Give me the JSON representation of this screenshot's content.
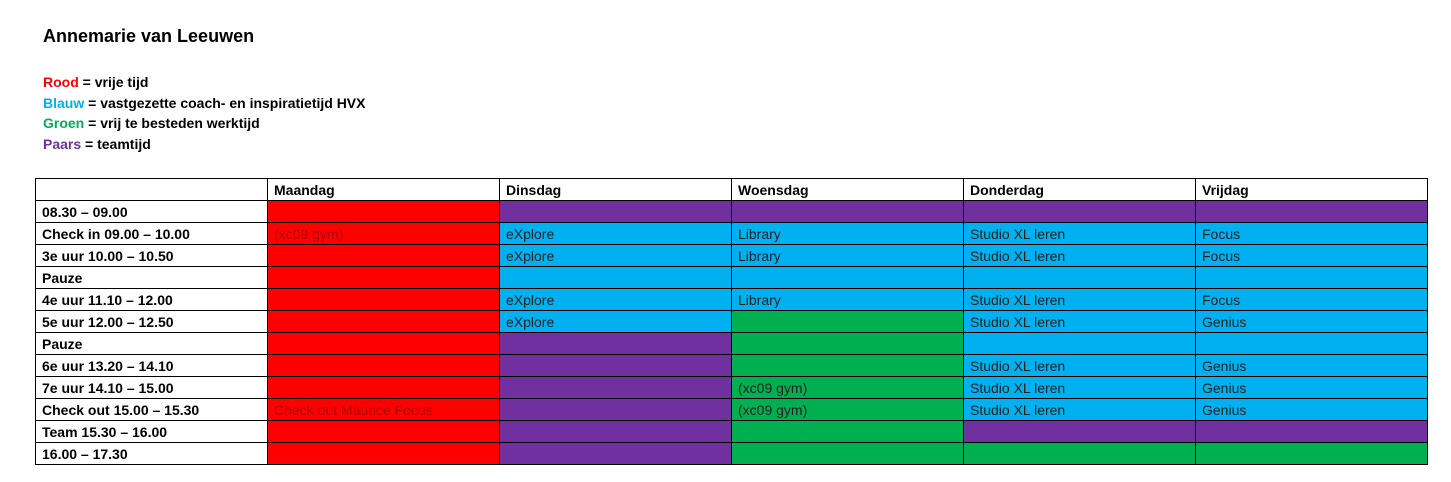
{
  "title": "Annemarie van Leeuwen",
  "colors": {
    "R": "#FF0000",
    "B": "#00B0F0",
    "G": "#00B050",
    "P": "#7030A0"
  },
  "legend": [
    {
      "key": "Rood",
      "color": "R",
      "desc": " = vrije tijd"
    },
    {
      "key": "Blauw",
      "color": "B",
      "desc": " = vastgezette coach- en inspiratietijd HVX"
    },
    {
      "key": "Groen",
      "color": "G",
      "desc": " = vrij te besteden werktijd"
    },
    {
      "key": "Paars",
      "color": "P",
      "desc": " = teamtijd"
    }
  ],
  "table": {
    "headers": [
      "",
      "Maandag",
      "Dinsdag",
      "Woensdag",
      "Donderdag",
      "Vrijdag"
    ],
    "rows": [
      {
        "time": "08.30 – 09.00",
        "cells": [
          [
            "R",
            ""
          ],
          [
            "P",
            ""
          ],
          [
            "P",
            ""
          ],
          [
            "P",
            ""
          ],
          [
            "P",
            ""
          ]
        ]
      },
      {
        "time": "Check in 09.00 – 10.00",
        "cells": [
          [
            "R",
            "(xc09 gym)"
          ],
          [
            "B",
            "eXplore"
          ],
          [
            "B",
            "Library"
          ],
          [
            "B",
            "Studio XL leren"
          ],
          [
            "B",
            "Focus"
          ]
        ]
      },
      {
        "time": "3e uur 10.00 – 10.50",
        "cells": [
          [
            "R",
            ""
          ],
          [
            "B",
            "eXplore"
          ],
          [
            "B",
            "Library"
          ],
          [
            "B",
            "Studio XL leren"
          ],
          [
            "B",
            "Focus"
          ]
        ]
      },
      {
        "time": "Pauze",
        "cells": [
          [
            "R",
            ""
          ],
          [
            "B",
            ""
          ],
          [
            "B",
            ""
          ],
          [
            "B",
            ""
          ],
          [
            "B",
            ""
          ]
        ]
      },
      {
        "time": "4e uur 11.10 – 12.00",
        "cells": [
          [
            "R",
            ""
          ],
          [
            "B",
            "eXplore"
          ],
          [
            "B",
            "Library"
          ],
          [
            "B",
            "Studio XL leren"
          ],
          [
            "B",
            "Focus"
          ]
        ]
      },
      {
        "time": "5e uur 12.00 – 12.50",
        "cells": [
          [
            "R",
            ""
          ],
          [
            "B",
            "eXplore"
          ],
          [
            "G",
            ""
          ],
          [
            "B",
            "Studio XL leren"
          ],
          [
            "B",
            "Genius"
          ]
        ]
      },
      {
        "time": "Pauze",
        "cells": [
          [
            "R",
            ""
          ],
          [
            "P",
            ""
          ],
          [
            "G",
            ""
          ],
          [
            "B",
            ""
          ],
          [
            "B",
            ""
          ]
        ]
      },
      {
        "time": "6e uur 13.20 – 14.10",
        "cells": [
          [
            "R",
            ""
          ],
          [
            "P",
            ""
          ],
          [
            "G",
            ""
          ],
          [
            "B",
            "Studio XL leren"
          ],
          [
            "B",
            "Genius"
          ]
        ]
      },
      {
        "time": "7e uur 14.10 – 15.00",
        "cells": [
          [
            "R",
            ""
          ],
          [
            "P",
            ""
          ],
          [
            "G",
            "(xc09 gym)"
          ],
          [
            "B",
            "Studio XL leren"
          ],
          [
            "B",
            "Genius"
          ]
        ]
      },
      {
        "time": "Check out 15.00 – 15.30",
        "cells": [
          [
            "R",
            "Check out Maurice Focus"
          ],
          [
            "P",
            ""
          ],
          [
            "G",
            "(xc09 gym)"
          ],
          [
            "B",
            "Studio XL leren"
          ],
          [
            "B",
            "Genius"
          ]
        ]
      },
      {
        "time": "Team 15.30 – 16.00",
        "cells": [
          [
            "R",
            ""
          ],
          [
            "P",
            ""
          ],
          [
            "G",
            ""
          ],
          [
            "P",
            ""
          ],
          [
            "P",
            ""
          ]
        ]
      },
      {
        "time": "16.00 – 17.30",
        "cells": [
          [
            "R",
            ""
          ],
          [
            "P",
            ""
          ],
          [
            "G",
            ""
          ],
          [
            "G",
            ""
          ],
          [
            "G",
            ""
          ]
        ]
      }
    ]
  }
}
